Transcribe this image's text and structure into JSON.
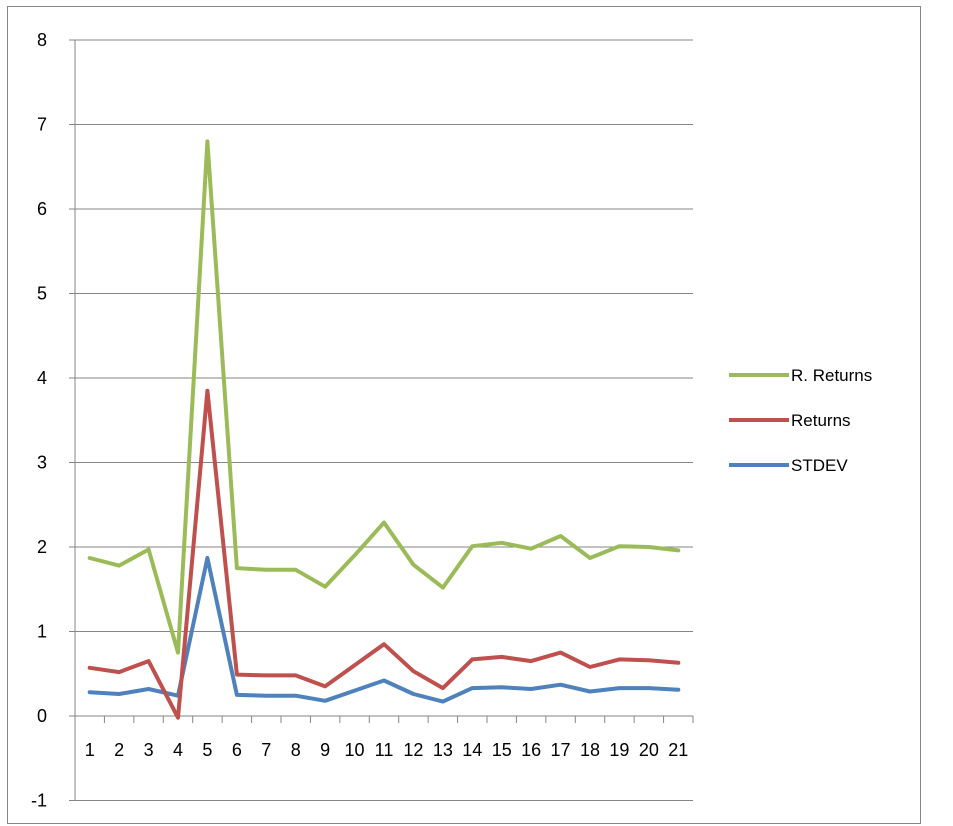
{
  "chart_data": {
    "type": "line",
    "categories": [
      "1",
      "2",
      "3",
      "4",
      "5",
      "6",
      "7",
      "8",
      "9",
      "10",
      "11",
      "12",
      "13",
      "14",
      "15",
      "16",
      "17",
      "18",
      "19",
      "20",
      "21"
    ],
    "series": [
      {
        "name": "R. Returns",
        "color": "#9bbb59",
        "values": [
          1.87,
          1.78,
          1.97,
          0.75,
          6.8,
          1.75,
          1.73,
          1.73,
          1.53,
          1.9,
          2.29,
          1.79,
          1.52,
          2.01,
          2.05,
          1.98,
          2.13,
          1.87,
          2.01,
          2.0,
          1.96
        ]
      },
      {
        "name": "Returns",
        "color": "#c0504d",
        "values": [
          0.57,
          0.52,
          0.65,
          -0.02,
          3.85,
          0.49,
          0.48,
          0.48,
          0.35,
          0.6,
          0.85,
          0.53,
          0.33,
          0.67,
          0.7,
          0.65,
          0.75,
          0.58,
          0.67,
          0.66,
          0.63
        ]
      },
      {
        "name": "STDEV",
        "color": "#4f81bd",
        "values": [
          0.28,
          0.26,
          0.32,
          0.24,
          1.87,
          0.25,
          0.24,
          0.24,
          0.18,
          0.3,
          0.42,
          0.26,
          0.17,
          0.33,
          0.34,
          0.32,
          0.37,
          0.29,
          0.33,
          0.33,
          0.31
        ]
      }
    ],
    "ylim": [
      -1,
      8
    ],
    "yticks": [
      "8",
      "7",
      "6",
      "5",
      "4",
      "3",
      "2",
      "1",
      "0",
      "-1"
    ],
    "grid": true,
    "legend_position": "right",
    "legend_order": [
      "R. Returns",
      "Returns",
      "STDEV"
    ],
    "gridline_color": "#868686",
    "axis_color": "#868686"
  }
}
